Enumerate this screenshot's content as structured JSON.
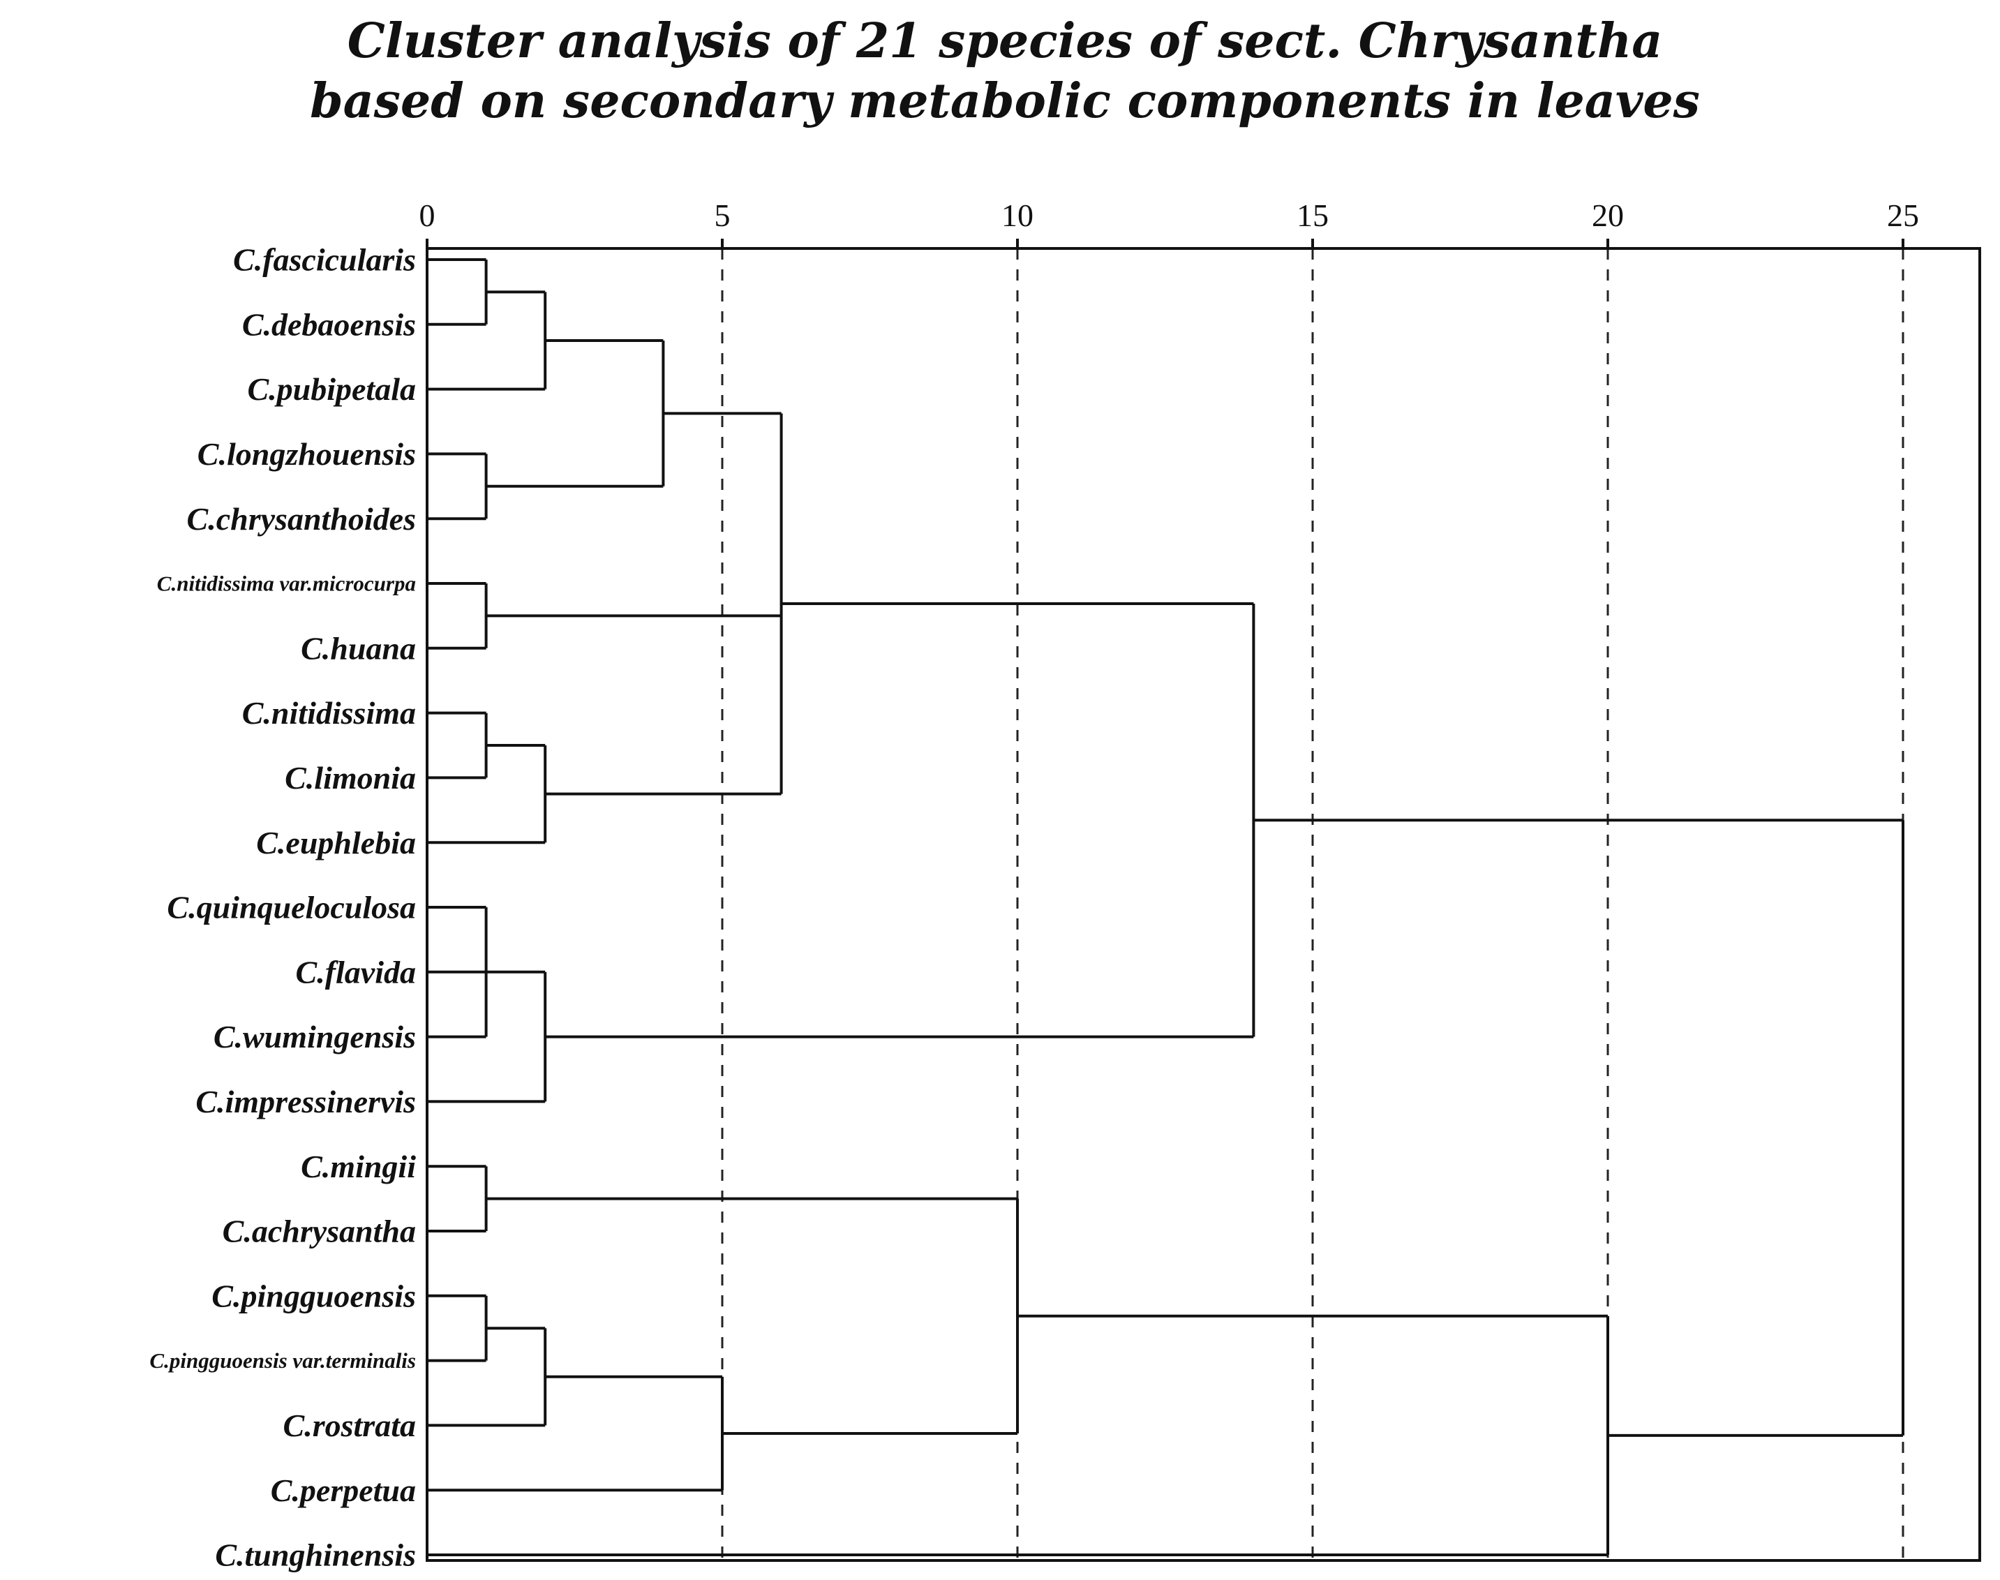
{
  "chart_data": {
    "type": "dendrogram",
    "title": "Cluster analysis of 21 species of sect. Chrysantha",
    "subtitle": "based on secondary metabolic components in leaves",
    "x_ticks": [
      0,
      5,
      10,
      15,
      20,
      25
    ],
    "x_range": [
      0,
      26.3
    ],
    "grid": "dashed vertical lines at 5, 10, 15, 20, 25",
    "leaves": [
      "C.fascicularis",
      "C.debaoensis",
      "C.pubipetala",
      "C.longzhouensis",
      "C.chrysanthoides",
      "C.nitidissima var.microcurpa",
      "C.huana",
      "C.nitidissima",
      "C.limonia",
      "C.euphlebia",
      "C.quinqueloculosa",
      "C.flavida",
      "C.wumingensis",
      "C.impressinervis",
      "C.mingii",
      "C.achrysantha",
      "C.pingguoensis",
      "C.pingguoensis var.terminalis",
      "C.rostrata",
      "C.perpetua",
      "C.tunghinensis"
    ],
    "merges": [
      {
        "id": "n1",
        "a": 0,
        "b": 1,
        "distance": 1
      },
      {
        "id": "n2",
        "a": "n1",
        "b": 2,
        "distance": 2
      },
      {
        "id": "n3",
        "a": 3,
        "b": 4,
        "distance": 1
      },
      {
        "id": "n4",
        "a": "n2",
        "b": "n3",
        "distance": 4
      },
      {
        "id": "n5",
        "a": 5,
        "b": 6,
        "distance": 1
      },
      {
        "id": "n6",
        "a": 7,
        "b": 8,
        "distance": 1
      },
      {
        "id": "n7",
        "a": "n6",
        "b": 9,
        "distance": 2
      },
      {
        "id": "n8",
        "a": "n4",
        "b": "n5",
        "c": "n7",
        "distance": 6
      },
      {
        "id": "n9",
        "a": 10,
        "b": 11,
        "c": 12,
        "distance": 1
      },
      {
        "id": "n10",
        "a": "n9",
        "b": 13,
        "distance": 2
      },
      {
        "id": "n11",
        "a": "n8",
        "b": "n10",
        "distance": 14
      },
      {
        "id": "n12",
        "a": 14,
        "b": 15,
        "distance": 1
      },
      {
        "id": "n13",
        "a": 16,
        "b": 17,
        "distance": 1
      },
      {
        "id": "n14",
        "a": "n13",
        "b": 18,
        "distance": 2
      },
      {
        "id": "n15",
        "a": "n14",
        "b": 19,
        "distance": 5
      },
      {
        "id": "n16",
        "a": "n12",
        "b": "n15",
        "distance": 10
      },
      {
        "id": "n17",
        "a": "n16",
        "b": 20,
        "distance": 20
      },
      {
        "id": "n18",
        "a": "n11",
        "b": "n17",
        "distance": 25
      }
    ]
  }
}
